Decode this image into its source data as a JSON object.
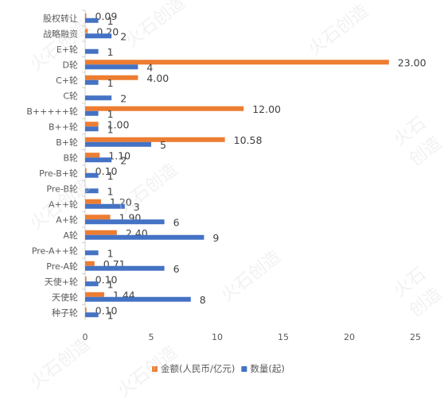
{
  "watermark": "火石创造",
  "chart_data": {
    "type": "bar",
    "orientation": "horizontal",
    "categories": [
      "股权转让",
      "战略融资",
      "E+轮",
      "D轮",
      "C+轮",
      "C轮",
      "B+++++轮",
      "B++轮",
      "B+轮",
      "B轮",
      "Pre-B+轮",
      "Pre-B轮",
      "A++轮",
      "A+轮",
      "A轮",
      "Pre-A++轮",
      "Pre-A轮",
      "天使+轮",
      "天使轮",
      "种子轮"
    ],
    "series": [
      {
        "name": "金额(人民币/亿元)",
        "color": "#ed7d31",
        "values": [
          0.09,
          0.2,
          null,
          23.0,
          4.0,
          null,
          12.0,
          1.0,
          10.58,
          1.1,
          0.1,
          null,
          1.2,
          1.9,
          2.4,
          null,
          0.71,
          0.1,
          1.44,
          0.1
        ],
        "labels": [
          "0.09",
          "0.20",
          "",
          "23.00",
          "4.00",
          "",
          "12.00",
          "1.00",
          "10.58",
          "1.10",
          "0.10",
          "",
          "1.20",
          "1.90",
          "2.40",
          "",
          "0.71",
          "0.10",
          "1.44",
          "0.10"
        ]
      },
      {
        "name": "数量(起)",
        "color": "#4472c4",
        "values": [
          1,
          2,
          1,
          4,
          1,
          2,
          1,
          1,
          5,
          2,
          1,
          1,
          3,
          6,
          9,
          1,
          6,
          1,
          8,
          1
        ],
        "labels": [
          "1",
          "2",
          "1",
          "4",
          "1",
          "2",
          "1",
          "1",
          "5",
          "2",
          "1",
          "1",
          "3",
          "6",
          "9",
          "1",
          "6",
          "1",
          "8",
          "1"
        ]
      }
    ],
    "xlim": [
      0,
      25
    ],
    "xticks": [
      "0",
      "5",
      "10",
      "15",
      "20",
      "25"
    ],
    "grid": false,
    "legend_position": "bottom"
  }
}
